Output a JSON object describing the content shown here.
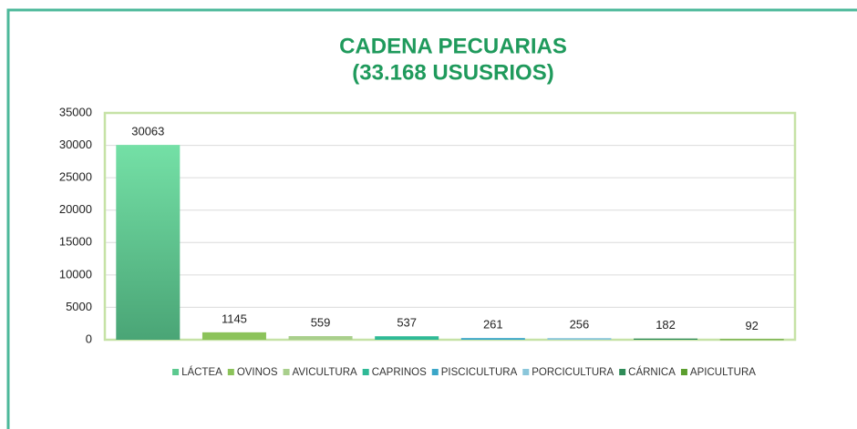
{
  "chart_data": {
    "type": "bar",
    "title": "CADENA PECUARIAS",
    "subtitle": "(33.168 USUSRIOS)",
    "categories": [
      "LÁCTEA",
      "OVINOS",
      "AVICULTURA",
      "CAPRINOS",
      "PISCICULTURA",
      "PORCICULTURA",
      "CÁRNICA",
      "APICULTURA"
    ],
    "values": [
      30063,
      1145,
      559,
      537,
      261,
      256,
      182,
      92
    ],
    "colors": [
      "#5cc98f",
      "#8cc35a",
      "#a9cf8c",
      "#2fb996",
      "#3ba6c8",
      "#8ac6da",
      "#2e8b57",
      "#5b9e2e"
    ],
    "ylim": [
      0,
      35000
    ],
    "yticks": [
      0,
      5000,
      10000,
      15000,
      20000,
      25000,
      30000,
      35000
    ],
    "grid": true,
    "legend": "bottom"
  }
}
